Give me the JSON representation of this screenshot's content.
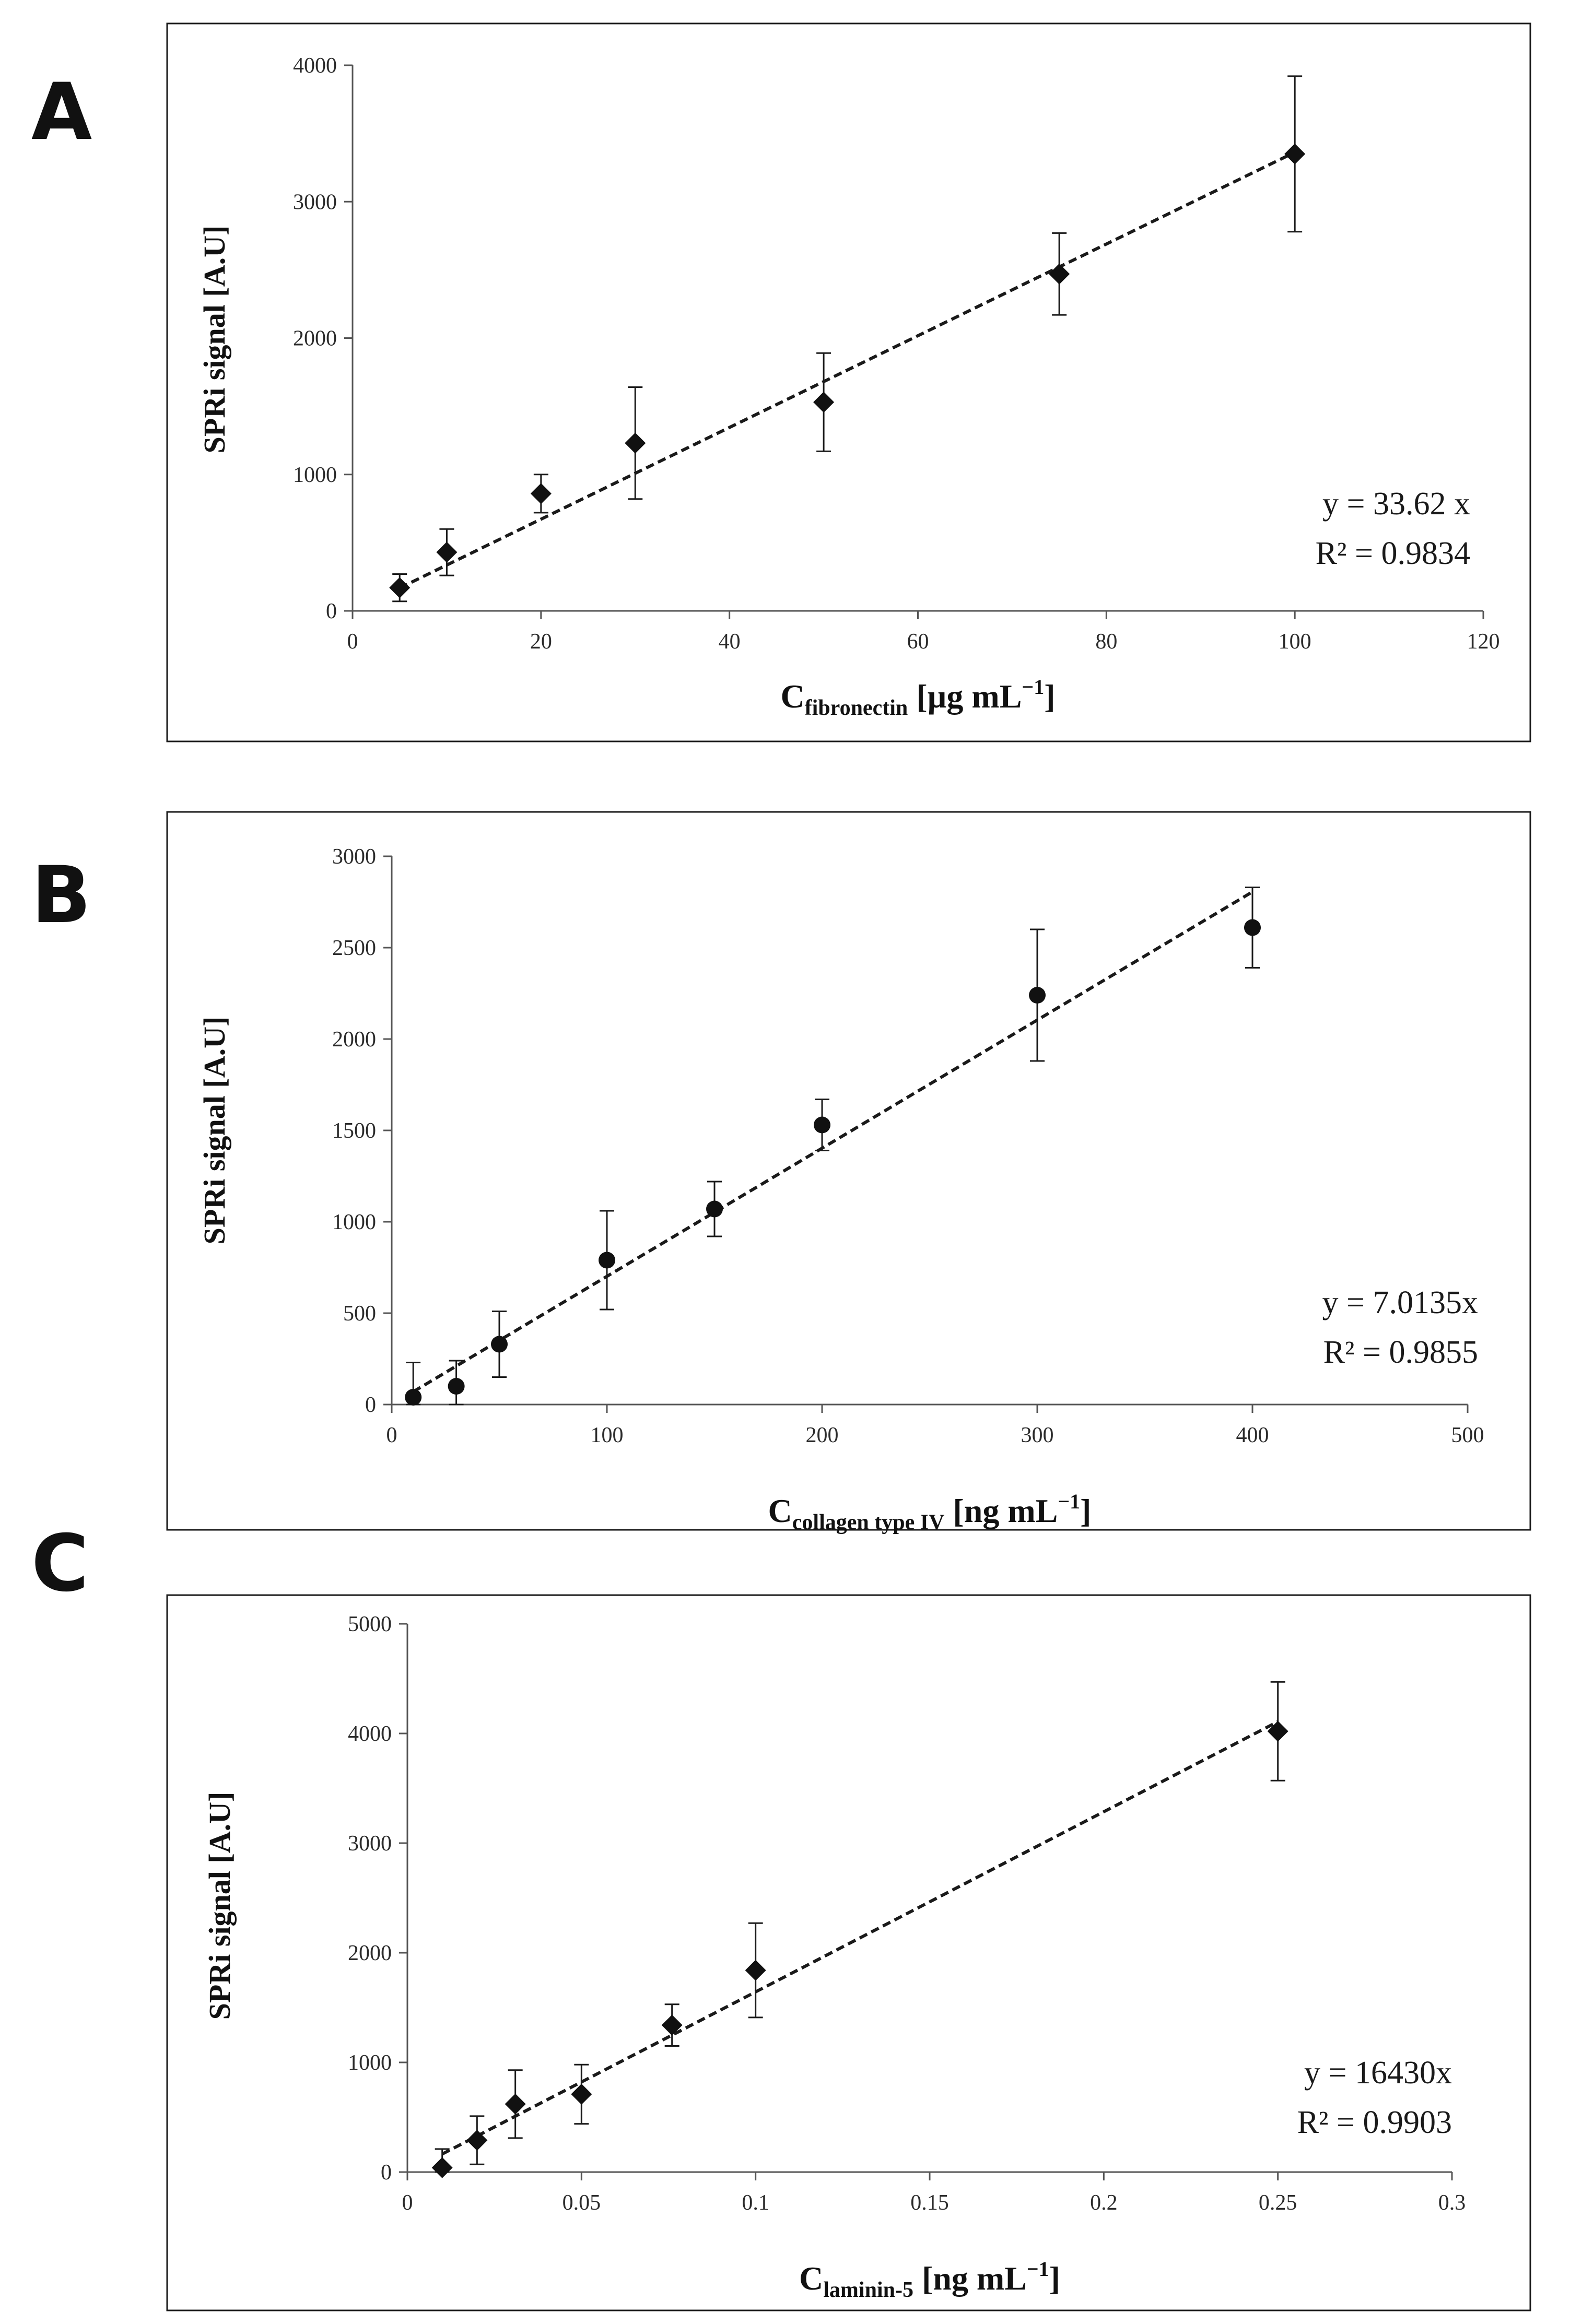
{
  "chart_data": [
    {
      "panel": "A",
      "type": "scatter",
      "ylabel": "SPRi signal [A.U]",
      "xlabel": {
        "main": "C",
        "sub": "fibronectin",
        "unit": " [µg mL",
        "exp": "−1",
        "close": "]"
      },
      "xlim": [
        0,
        120
      ],
      "ylim": [
        0,
        4000
      ],
      "xticks": [
        0,
        20,
        40,
        60,
        80,
        100,
        120
      ],
      "yticks": [
        0,
        1000,
        2000,
        3000,
        4000
      ],
      "equation": "y = 33.62 x",
      "r2": "R² = 0.9834",
      "slope": 33.62,
      "marker": "diamond",
      "points": [
        {
          "x": 5,
          "y": 170,
          "err": 100
        },
        {
          "x": 10,
          "y": 430,
          "err": 170
        },
        {
          "x": 20,
          "y": 860,
          "err": 140
        },
        {
          "x": 30,
          "y": 1230,
          "err": 410
        },
        {
          "x": 50,
          "y": 1530,
          "err": 360
        },
        {
          "x": 75,
          "y": 2470,
          "err": 300
        },
        {
          "x": 100,
          "y": 3350,
          "err": 570
        }
      ]
    },
    {
      "panel": "B",
      "type": "scatter",
      "ylabel": "SPRi signal [A.U]",
      "xlabel": {
        "main": "C",
        "sub": "collagen type IV",
        "unit": " [ng mL",
        "exp": "−1",
        "close": "]"
      },
      "xlim": [
        0,
        500
      ],
      "ylim": [
        0,
        3000
      ],
      "xticks": [
        0,
        100,
        200,
        300,
        400,
        500
      ],
      "yticks": [
        0,
        500,
        1000,
        1500,
        2000,
        2500,
        3000
      ],
      "equation": "y = 7.0135x",
      "r2": "R² = 0.9855",
      "slope": 7.0135,
      "marker": "circle",
      "points": [
        {
          "x": 10,
          "y": 40,
          "err": 190
        },
        {
          "x": 30,
          "y": 100,
          "err": 140
        },
        {
          "x": 50,
          "y": 330,
          "err": 180
        },
        {
          "x": 100,
          "y": 790,
          "err": 270
        },
        {
          "x": 150,
          "y": 1070,
          "err": 150
        },
        {
          "x": 200,
          "y": 1530,
          "err": 140
        },
        {
          "x": 300,
          "y": 2240,
          "err": 360
        },
        {
          "x": 400,
          "y": 2610,
          "err": 220
        }
      ]
    },
    {
      "panel": "C",
      "type": "scatter",
      "ylabel": "SPRi signal [A.U]",
      "xlabel": {
        "main": "C",
        "sub": "laminin-5",
        "unit": " [ng mL",
        "exp": "−1",
        "close": "]"
      },
      "xlim": [
        0,
        0.3
      ],
      "ylim": [
        0,
        5000
      ],
      "xticks": [
        0,
        0.05,
        0.1,
        0.15,
        0.2,
        0.25,
        0.3
      ],
      "yticks": [
        0,
        1000,
        2000,
        3000,
        4000,
        5000
      ],
      "equation": "y = 16430x",
      "r2": "R² = 0.9903",
      "slope": 16430,
      "marker": "diamond",
      "points": [
        {
          "x": 0.01,
          "y": 40,
          "err": 170
        },
        {
          "x": 0.02,
          "y": 290,
          "err": 220
        },
        {
          "x": 0.031,
          "y": 620,
          "err": 310
        },
        {
          "x": 0.05,
          "y": 710,
          "err": 270
        },
        {
          "x": 0.076,
          "y": 1340,
          "err": 190
        },
        {
          "x": 0.1,
          "y": 1840,
          "err": 430
        },
        {
          "x": 0.25,
          "y": 4020,
          "err": 450
        }
      ]
    }
  ]
}
